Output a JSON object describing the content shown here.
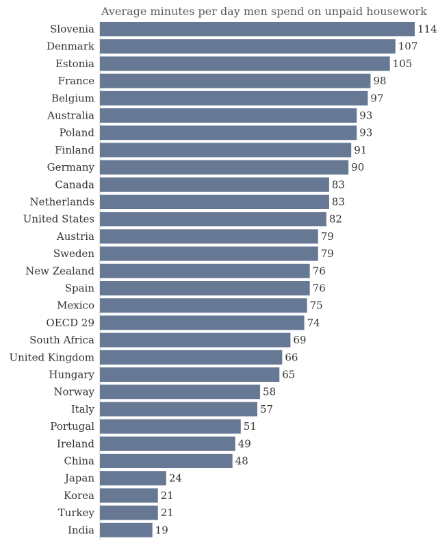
{
  "chart_data": {
    "type": "bar",
    "orientation": "horizontal",
    "title": "Average minutes per day men spend on unpaid housework",
    "categories": [
      "Slovenia",
      "Denmark",
      "Estonia",
      "France",
      "Belgium",
      "Australia",
      "Poland",
      "Finland",
      "Germany",
      "Canada",
      "Netherlands",
      "United States",
      "Austria",
      "Sweden",
      "New Zealand",
      "Spain",
      "Mexico",
      "OECD 29",
      "South Africa",
      "United Kingdom",
      "Hungary",
      "Norway",
      "Italy",
      "Portugal",
      "Ireland",
      "China",
      "Japan",
      "Korea",
      "Turkey",
      "India"
    ],
    "values": [
      114,
      107,
      105,
      98,
      97,
      93,
      93,
      91,
      90,
      83,
      83,
      82,
      79,
      79,
      76,
      76,
      75,
      74,
      69,
      66,
      65,
      58,
      57,
      51,
      49,
      48,
      24,
      21,
      21,
      19
    ],
    "colors": {
      "bar": "#667894"
    },
    "value_labels": true
  }
}
